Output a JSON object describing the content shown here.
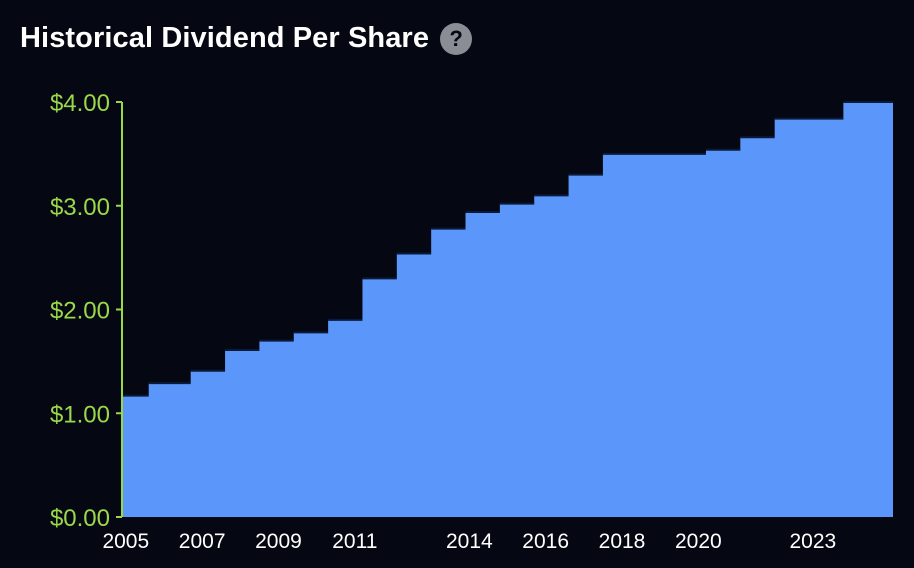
{
  "header": {
    "title": "Historical Dividend Per Share",
    "help_icon": "question-mark-icon",
    "help_glyph": "?"
  },
  "colors": {
    "background": "#050812",
    "area": "#5b96fb",
    "axis": "#9ad84a",
    "tick_text_x": "#ffffff"
  },
  "chart_data": {
    "type": "area",
    "step": true,
    "title": "Historical Dividend Per Share",
    "xlabel": "",
    "ylabel": "",
    "ylim": [
      0,
      4
    ],
    "xlim": [
      2004.9,
      2025.1
    ],
    "y_tick_values": [
      0,
      1,
      2,
      3,
      4
    ],
    "y_tick_labels": [
      "$0.00",
      "$1.00",
      "$2.00",
      "$3.00",
      "$4.00"
    ],
    "x_tick_values": [
      2005,
      2007,
      2009,
      2011,
      2014,
      2016,
      2018,
      2020,
      2023
    ],
    "x_tick_labels": [
      "2005",
      "2007",
      "2009",
      "2011",
      "2014",
      "2016",
      "2018",
      "2020",
      "2023"
    ],
    "grid": false,
    "legend": "none",
    "series": [
      {
        "x": [
          2004.9,
          2005.6,
          2006.7,
          2007.6,
          2008.5,
          2009.4,
          2010.3,
          2011.2,
          2012.1,
          2013.0,
          2013.9,
          2014.8,
          2015.7,
          2016.6,
          2017.5,
          2018.4,
          2019.3,
          2020.2,
          2021.1,
          2022.0,
          2022.9,
          2023.8,
          2024.6
        ],
        "y": [
          1.17,
          1.29,
          1.41,
          1.61,
          1.7,
          1.78,
          1.9,
          2.3,
          2.54,
          2.78,
          2.94,
          3.02,
          3.1,
          3.3,
          3.5,
          3.5,
          3.5,
          3.54,
          3.66,
          3.84,
          3.84,
          4.0,
          4.0
        ]
      }
    ]
  }
}
